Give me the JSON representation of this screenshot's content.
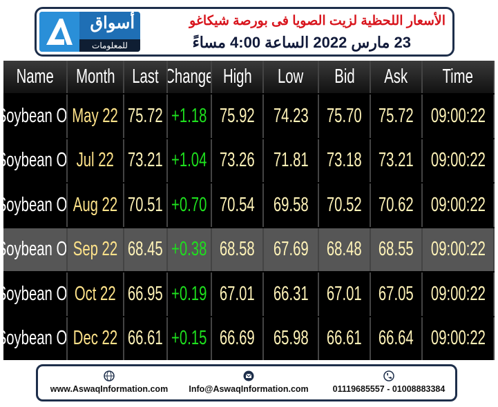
{
  "header": {
    "title": "الأسعار اللحظية لزيت الصويا فى بورصة شيكاغو",
    "subtitle": "23 مارس 2022 الساعة 4:00 مساءً",
    "logo": {
      "name": "أسواق",
      "tagline": "للمعلومات"
    }
  },
  "table": {
    "columns": [
      "Name",
      "Month",
      "Last",
      "Change",
      "High",
      "Low",
      "Bid",
      "Ask",
      "Time"
    ],
    "rows": [
      [
        "Soybean Oil",
        "May 22",
        "75.72",
        "+1.18",
        "75.92",
        "74.23",
        "75.70",
        "75.72",
        "09:00:22"
      ],
      [
        "Soybean Oil",
        "Jul 22",
        "73.21",
        "+1.04",
        "73.26",
        "71.81",
        "73.18",
        "73.21",
        "09:00:22"
      ],
      [
        "Soybean Oil",
        "Aug 22",
        "70.51",
        "+0.70",
        "70.54",
        "69.58",
        "70.52",
        "70.62",
        "09:00:22"
      ],
      [
        "Soybean Oil",
        "Sep 22",
        "68.45",
        "+0.38",
        "68.58",
        "67.69",
        "68.48",
        "68.55",
        "09:00:22"
      ],
      [
        "Soybean Oil",
        "Oct 22",
        "66.95",
        "+0.19",
        "67.01",
        "66.31",
        "67.01",
        "67.05",
        "09:00:22"
      ],
      [
        "Soybean Oil",
        "Dec 22",
        "66.61",
        "+0.15",
        "66.69",
        "65.98",
        "66.61",
        "66.64",
        "09:00:22"
      ]
    ]
  },
  "footer": {
    "website": "www.AswaqInformation.com",
    "email": "Info@AswaqInformation.com",
    "phone": "01119685557 - 01008883384"
  }
}
